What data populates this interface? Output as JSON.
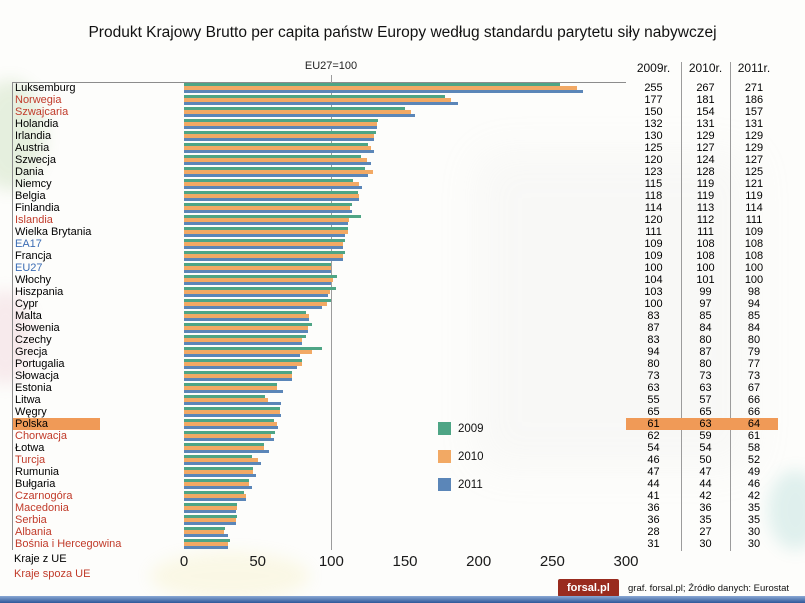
{
  "chart_data": {
    "type": "bar",
    "orientation": "horizontal",
    "title": "Produkt Krajowy Brutto per capita państw Europy według standardu parytetu siły nabywczej",
    "reference_label": "EU27=100",
    "xlim": [
      0,
      300
    ],
    "x_ticks": [
      0,
      50,
      100,
      150,
      200,
      250,
      300
    ],
    "series_years": [
      "2009",
      "2010",
      "2011"
    ],
    "column_headers": [
      "2009r.",
      "2010r.",
      "2011r."
    ],
    "legend": [
      {
        "label": "2009",
        "color": "#4ea585"
      },
      {
        "label": "2010",
        "color": "#f2a964"
      },
      {
        "label": "2011",
        "color": "#5b86b8"
      }
    ],
    "countries": [
      {
        "name": "Luksemburg",
        "type": "eu",
        "values": [
          255,
          267,
          271
        ]
      },
      {
        "name": "Norwegia",
        "type": "non-eu",
        "values": [
          177,
          181,
          186
        ]
      },
      {
        "name": "Szwajcaria",
        "type": "non-eu",
        "values": [
          150,
          154,
          157
        ]
      },
      {
        "name": "Holandia",
        "type": "eu",
        "values": [
          132,
          131,
          131
        ]
      },
      {
        "name": "Irlandia",
        "type": "eu",
        "values": [
          130,
          129,
          129
        ]
      },
      {
        "name": "Austria",
        "type": "eu",
        "values": [
          125,
          127,
          129
        ]
      },
      {
        "name": "Szwecja",
        "type": "eu",
        "values": [
          120,
          124,
          127
        ]
      },
      {
        "name": "Dania",
        "type": "eu",
        "values": [
          123,
          128,
          125
        ]
      },
      {
        "name": "Niemcy",
        "type": "eu",
        "values": [
          115,
          119,
          121
        ]
      },
      {
        "name": "Belgia",
        "type": "eu",
        "values": [
          118,
          119,
          119
        ]
      },
      {
        "name": "Finlandia",
        "type": "eu",
        "values": [
          114,
          113,
          114
        ]
      },
      {
        "name": "Islandia",
        "type": "non-eu",
        "values": [
          120,
          112,
          111
        ]
      },
      {
        "name": "Wielka Brytania",
        "type": "eu",
        "values": [
          111,
          111,
          109
        ]
      },
      {
        "name": "EA17",
        "type": "aggregate",
        "values": [
          109,
          108,
          108
        ]
      },
      {
        "name": "Francja",
        "type": "eu",
        "values": [
          109,
          108,
          108
        ]
      },
      {
        "name": "EU27",
        "type": "aggregate",
        "values": [
          100,
          100,
          100
        ]
      },
      {
        "name": "Włochy",
        "type": "eu",
        "values": [
          104,
          101,
          100
        ]
      },
      {
        "name": "Hiszpania",
        "type": "eu",
        "values": [
          103,
          99,
          98
        ]
      },
      {
        "name": "Cypr",
        "type": "eu",
        "values": [
          100,
          97,
          94
        ]
      },
      {
        "name": "Malta",
        "type": "eu",
        "values": [
          83,
          85,
          85
        ]
      },
      {
        "name": "Słowenia",
        "type": "eu",
        "values": [
          87,
          84,
          84
        ]
      },
      {
        "name": "Czechy",
        "type": "eu",
        "values": [
          83,
          80,
          80
        ]
      },
      {
        "name": "Grecja",
        "type": "eu",
        "values": [
          94,
          87,
          79
        ]
      },
      {
        "name": "Portugalia",
        "type": "eu",
        "values": [
          80,
          80,
          77
        ]
      },
      {
        "name": "Słowacja",
        "type": "eu",
        "values": [
          73,
          73,
          73
        ]
      },
      {
        "name": "Estonia",
        "type": "eu",
        "values": [
          63,
          63,
          67
        ]
      },
      {
        "name": "Litwa",
        "type": "eu",
        "values": [
          55,
          57,
          66
        ]
      },
      {
        "name": "Węgry",
        "type": "eu",
        "values": [
          65,
          65,
          66
        ]
      },
      {
        "name": "Polska",
        "type": "eu",
        "highlight": true,
        "values": [
          61,
          63,
          64
        ]
      },
      {
        "name": "Chorwacja",
        "type": "non-eu",
        "values": [
          62,
          59,
          61
        ]
      },
      {
        "name": "Łotwa",
        "type": "eu",
        "values": [
          54,
          54,
          58
        ]
      },
      {
        "name": "Turcja",
        "type": "non-eu",
        "values": [
          46,
          50,
          52
        ]
      },
      {
        "name": "Rumunia",
        "type": "eu",
        "values": [
          47,
          47,
          49
        ]
      },
      {
        "name": "Bułgaria",
        "type": "eu",
        "values": [
          44,
          44,
          46
        ]
      },
      {
        "name": "Czarnogóra",
        "type": "non-eu",
        "values": [
          41,
          42,
          42
        ]
      },
      {
        "name": "Macedonia",
        "type": "non-eu",
        "values": [
          36,
          36,
          35
        ]
      },
      {
        "name": "Serbia",
        "type": "non-eu",
        "values": [
          36,
          35,
          35
        ]
      },
      {
        "name": "Albania",
        "type": "non-eu",
        "values": [
          28,
          27,
          30
        ]
      },
      {
        "name": "Bośnia i Hercegowina",
        "type": "non-eu",
        "values": [
          31,
          30,
          30
        ]
      }
    ]
  },
  "footer": {
    "kraje_eu": "Kraje z UE",
    "kraje_spoza": "Kraje spoza UE",
    "logo": "forsal.pl",
    "credit": "graf. forsal.pl; Źródło danych: Eurostat"
  },
  "colors": {
    "eu_label": "#000000",
    "non_eu_label": "#c13b2a",
    "aggregate_label": "#3b6cb4",
    "highlight_bg": "#f09a57",
    "logo_bg": "#992b1e",
    "grid_line": "#9c9c9c",
    "bottom_strip_top": "#8aa8d4",
    "bottom_strip_bottom": "#2f5799"
  }
}
